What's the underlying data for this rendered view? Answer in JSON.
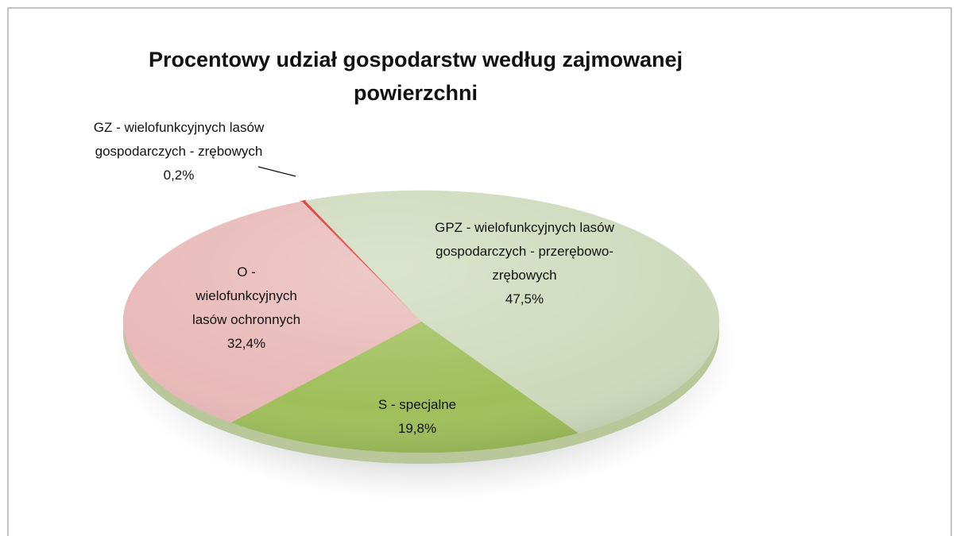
{
  "chart_data": {
    "type": "pie",
    "title": "Procentowy udział gospodarstw według zajmowanej powierzchni",
    "categories": [
      "GZ - wielofunkcyjnych lasów gospodarczych - zrębowych",
      "GPZ - wielofunkcyjnych lasów gospodarczych - przerębowo-zrębowych",
      "S - specjalne",
      "O - wielofunkcyjnych lasów ochronnych"
    ],
    "values": [
      0.2,
      47.5,
      19.8,
      32.4
    ],
    "value_labels": [
      "0,2%",
      "47,5%",
      "19,8%",
      "32,4%"
    ],
    "colors": [
      "#e0302c",
      "#cfdabc",
      "#9fbf5a",
      "#e8b9b8"
    ]
  }
}
